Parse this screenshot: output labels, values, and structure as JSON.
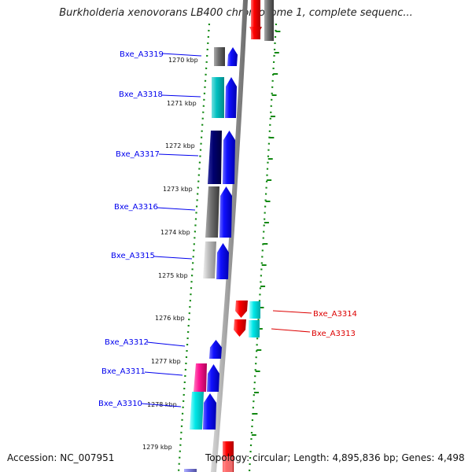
{
  "title": "Burkholderia xenovorans LB400 chromosome 1, complete sequenc...",
  "accession_text": "Accession: NC_007951",
  "summary_text": "Topology: circular; Length: 4,895,836 bp; Genes: 4,498",
  "ticks": [
    "1270 kbp",
    "1271 kbp",
    "1272 kbp",
    "1273 kbp",
    "1274 kbp",
    "1275 kbp",
    "1276 kbp",
    "1277 kbp",
    "1278 kbp",
    "1279 kbp"
  ],
  "genes": [
    {
      "name": "Bxe_A3319",
      "strand": "forward",
      "color": "#0000ee"
    },
    {
      "name": "Bxe_A3318",
      "strand": "forward",
      "color": "#0000ee"
    },
    {
      "name": "Bxe_A3317",
      "strand": "forward",
      "color": "#0000ee"
    },
    {
      "name": "Bxe_A3316",
      "strand": "forward",
      "color": "#0000ee"
    },
    {
      "name": "Bxe_A3315",
      "strand": "forward",
      "color": "#0000ee"
    },
    {
      "name": "Bxe_A3314",
      "strand": "reverse",
      "color": "#dd0000"
    },
    {
      "name": "Bxe_A3313",
      "strand": "reverse",
      "color": "#dd0000"
    },
    {
      "name": "Bxe_A3312",
      "strand": "forward",
      "color": "#0000ee"
    },
    {
      "name": "Bxe_A3311",
      "strand": "forward",
      "color": "#0000ee"
    },
    {
      "name": "Bxe_A3310",
      "strand": "forward",
      "color": "#0000ee"
    }
  ]
}
